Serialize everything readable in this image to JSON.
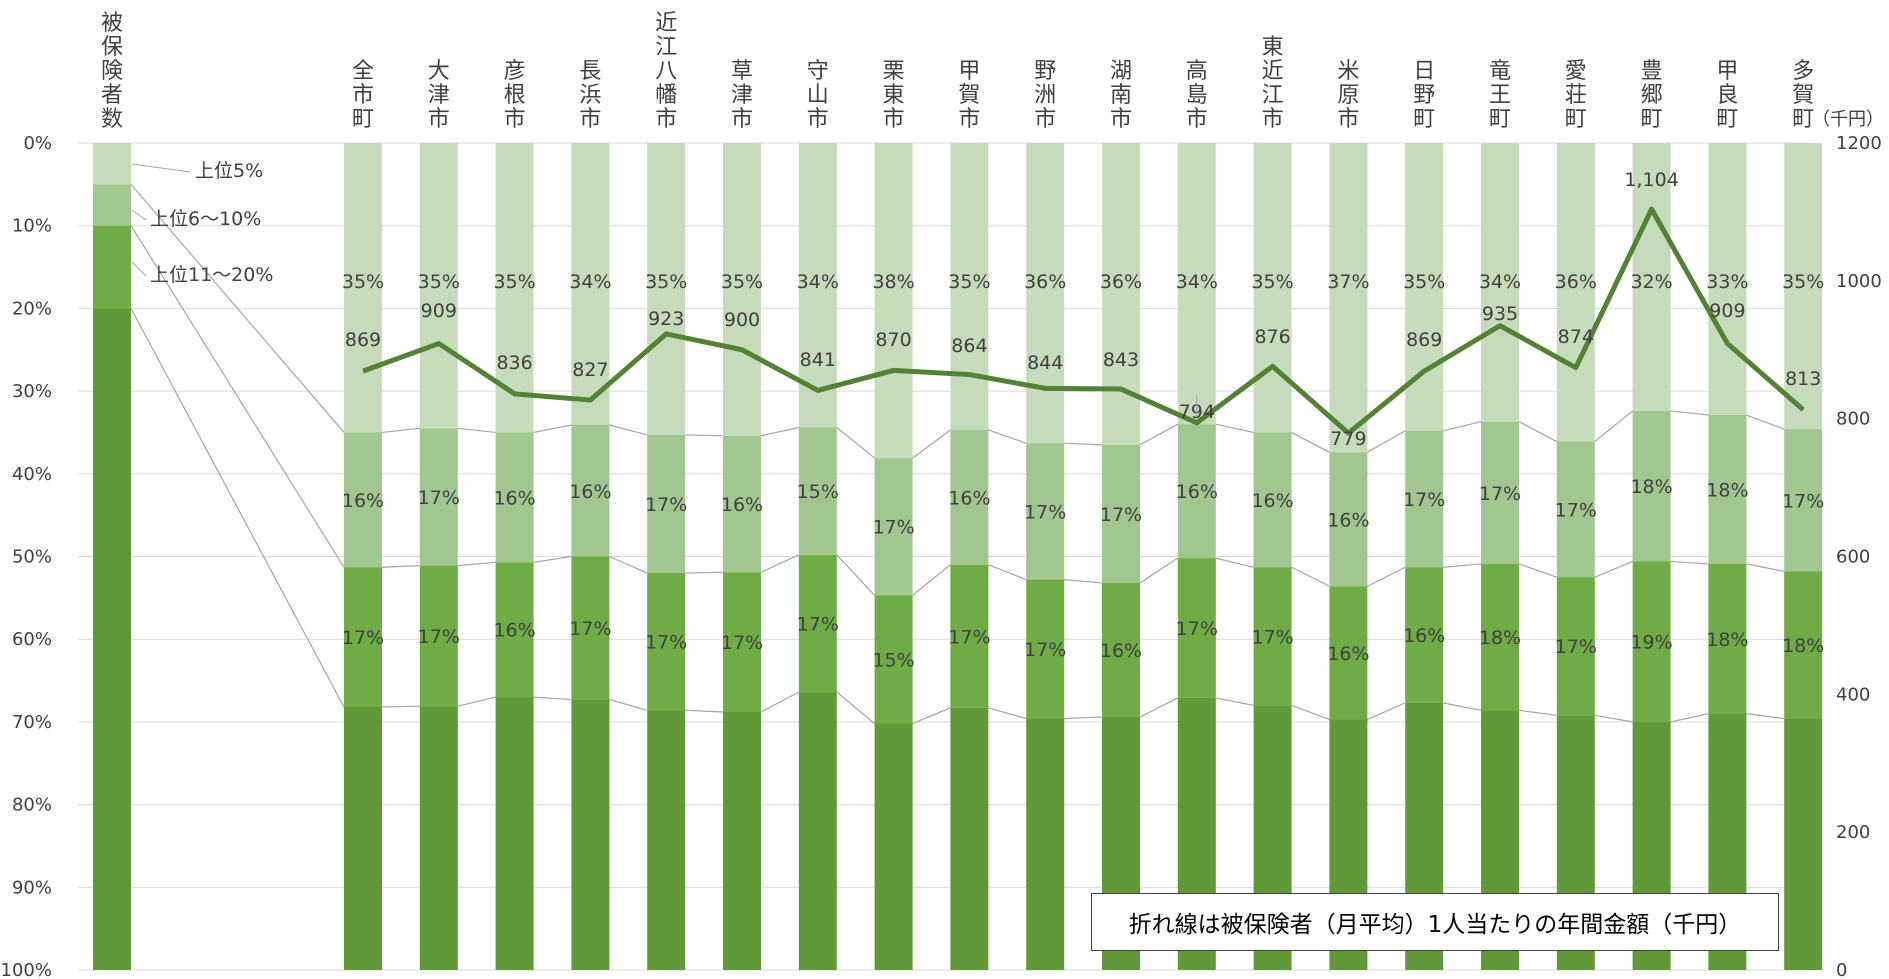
{
  "chart_data": {
    "type": "bar",
    "stacked": true,
    "left_axis": {
      "ticks": [
        "0%",
        "10%",
        "20%",
        "30%",
        "40%",
        "50%",
        "60%",
        "70%",
        "80%",
        "90%",
        "100%"
      ],
      "reversed": true
    },
    "right_axis": {
      "unit": "（千円）",
      "ticks": [
        "1200",
        "1000",
        "800",
        "600",
        "400",
        "200",
        "0"
      ],
      "ylim": [
        0,
        1200
      ]
    },
    "insured_column": {
      "label": "被保険者数",
      "segments": [
        {
          "name": "上位5%",
          "value": 5
        },
        {
          "name": "上位6～10%",
          "value": 5
        },
        {
          "name": "上位11～20%",
          "value": 10
        },
        {
          "name": "",
          "value": 80
        }
      ]
    },
    "categories": [
      "全市町",
      "大津市",
      "彦根市",
      "長浜市",
      "近江八幡市",
      "草津市",
      "守山市",
      "栗東市",
      "甲賀市",
      "野洲市",
      "湖南市",
      "高島市",
      "東近江市",
      "米原市",
      "日野町",
      "竜王町",
      "愛荘町",
      "豊郷町",
      "甲良町",
      "多賀町"
    ],
    "series": [
      {
        "name": "上位5%",
        "values": [
          35,
          35,
          35,
          34,
          35,
          35,
          34,
          38,
          35,
          36,
          36,
          34,
          35,
          37,
          35,
          34,
          36,
          32,
          33,
          35
        ]
      },
      {
        "name": "上位6～10%",
        "values": [
          16,
          17,
          16,
          16,
          17,
          16,
          15,
          17,
          16,
          17,
          17,
          16,
          16,
          16,
          17,
          17,
          17,
          18,
          18,
          17
        ]
      },
      {
        "name": "上位11～20%",
        "values": [
          17,
          17,
          16,
          17,
          17,
          17,
          17,
          15,
          17,
          17,
          16,
          17,
          17,
          16,
          16,
          18,
          17,
          19,
          18,
          18
        ]
      }
    ],
    "cumulative_boundaries": [
      [
        35.0,
        51.3,
        68.2
      ],
      [
        34.5,
        51.1,
        68.1
      ],
      [
        35.0,
        50.7,
        67.0
      ],
      [
        34.1,
        50.0,
        67.3
      ],
      [
        35.3,
        52.0,
        68.6
      ],
      [
        35.4,
        51.9,
        68.8
      ],
      [
        34.4,
        49.8,
        66.4
      ],
      [
        38.1,
        54.7,
        70.2
      ],
      [
        34.7,
        51.0,
        68.3
      ],
      [
        36.3,
        52.8,
        69.6
      ],
      [
        36.5,
        53.2,
        69.4
      ],
      [
        34.0,
        50.2,
        67.1
      ],
      [
        35.0,
        51.3,
        68.0
      ],
      [
        37.4,
        53.6,
        69.7
      ],
      [
        34.8,
        51.3,
        67.7
      ],
      [
        33.7,
        50.9,
        68.6
      ],
      [
        36.1,
        52.5,
        69.2
      ],
      [
        32.4,
        50.6,
        70.0
      ],
      [
        32.9,
        50.9,
        69.0
      ],
      [
        34.6,
        51.8,
        69.6
      ]
    ],
    "line_series": {
      "name": "折れ線は被保険者（月平均）1人当たりの年間金額（千円）",
      "values": [
        869,
        909,
        836,
        827,
        923,
        900,
        841,
        870,
        864,
        844,
        843,
        794,
        876,
        779,
        869,
        935,
        874,
        1104,
        909,
        813
      ]
    },
    "line_labels": [
      "869",
      "909",
      "836",
      "827",
      "923",
      "900",
      "841",
      "870",
      "864",
      "844",
      "843",
      "794",
      "876",
      "779",
      "869",
      "935",
      "874",
      "1,104",
      "909",
      "813"
    ],
    "colors": {
      "top5": "#c5dbbb",
      "top6_10": "#a2c68f",
      "top11_20": "#6fac46",
      "rest": "#609938",
      "line": "#548234",
      "connector": "#a5a5a5",
      "grid": "#d9d9d9"
    },
    "legend": "none",
    "grid": true
  },
  "note": "折れ線は被保険者（月平均）1人当たりの年間金額（千円）"
}
